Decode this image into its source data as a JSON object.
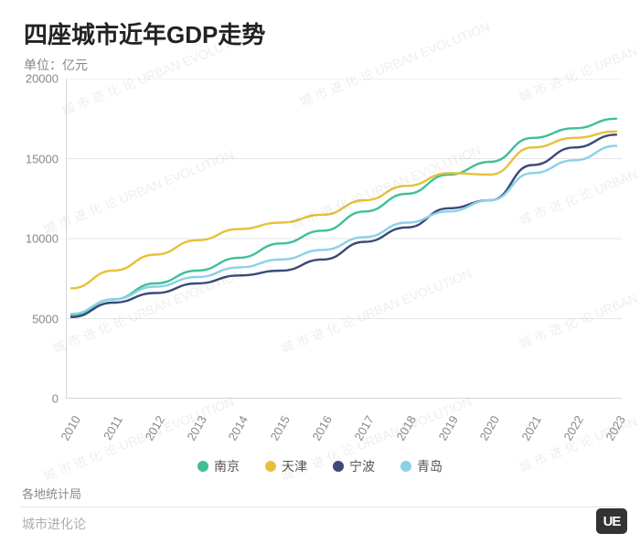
{
  "title": "四座城市近年GDP走势",
  "subtitle": "单位：亿元",
  "source": "各地统计局",
  "footer": "城市进化论",
  "badge": "UE",
  "watermark_text": "城 市 进 化 论  URBAN EVOLUTION",
  "chart": {
    "type": "line",
    "background_color": "#ffffff",
    "grid_color": "#e5e5e5",
    "axis_color": "#bfbfbf",
    "text_color": "#888888",
    "title_fontsize": 26,
    "label_fontsize": 13,
    "line_width": 2.4,
    "x": {
      "categories": [
        "2010",
        "2011",
        "2012",
        "2013",
        "2014",
        "2015",
        "2016",
        "2017",
        "2018",
        "2019",
        "2020",
        "2021",
        "2022",
        "2023"
      ],
      "tick_rotation_deg": -60
    },
    "y": {
      "min": 0,
      "max": 20000,
      "tick_step": 5000,
      "ticks": [
        0,
        5000,
        10000,
        15000,
        20000
      ]
    },
    "series": [
      {
        "name": "南京",
        "color": "#3fbf99",
        "values": [
          5200,
          6200,
          7200,
          8000,
          8800,
          9700,
          10500,
          11700,
          12800,
          14000,
          14800,
          16300,
          16900,
          17500
        ]
      },
      {
        "name": "天津",
        "color": "#e7c03b",
        "values": [
          6900,
          8000,
          9000,
          9900,
          10600,
          11000,
          11500,
          12400,
          13300,
          14100,
          14000,
          15700,
          16300,
          16700
        ]
      },
      {
        "name": "宁波",
        "color": "#3a4a78",
        "values": [
          5100,
          6000,
          6600,
          7200,
          7700,
          8000,
          8700,
          9800,
          10700,
          11900,
          12400,
          14600,
          15700,
          16500
        ]
      },
      {
        "name": "青岛",
        "color": "#8bd1e8",
        "values": [
          5300,
          6200,
          7000,
          7600,
          8200,
          8700,
          9300,
          10100,
          11000,
          11700,
          12400,
          14100,
          14900,
          15800
        ]
      }
    ],
    "legend": {
      "position": "bottom",
      "marker": "dot"
    }
  }
}
